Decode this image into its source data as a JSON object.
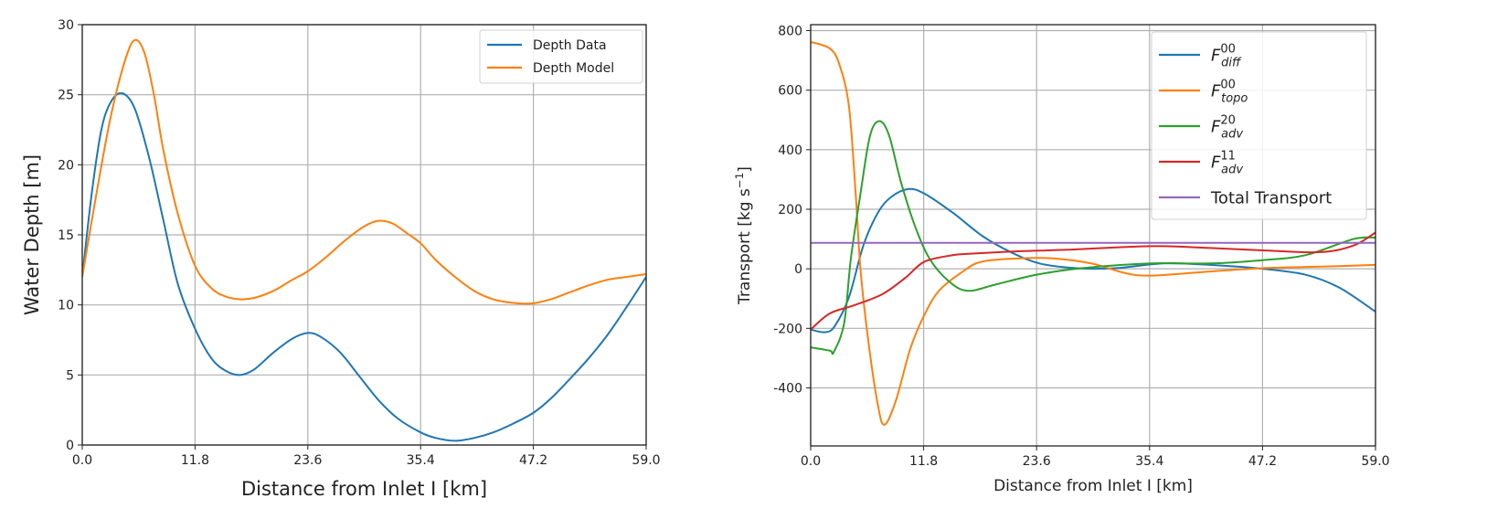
{
  "chart_data": [
    {
      "type": "line",
      "xlabel": "Distance from Inlet I [km]",
      "ylabel": "Water Depth [m]",
      "xlim": [
        0,
        59
      ],
      "ylim": [
        0,
        30
      ],
      "xticks": [
        "0.0",
        "11.8",
        "23.6",
        "35.4",
        "47.2",
        "59.0"
      ],
      "yticks": [
        "0",
        "5",
        "10",
        "15",
        "20",
        "25",
        "30"
      ],
      "grid": true,
      "legend_position": "top-right",
      "series": [
        {
          "name": "Depth Data",
          "color": "#1f77b4",
          "x": [
            0,
            1,
            2,
            3,
            4.2,
            5.5,
            7,
            8.5,
            10,
            11.8,
            13.5,
            15,
            16.5,
            18,
            20,
            22,
            23.6,
            25,
            27,
            29,
            31,
            33,
            35.4,
            37,
            39,
            41,
            43,
            45,
            47.2,
            49,
            51,
            53,
            55,
            57,
            59
          ],
          "y": [
            12,
            18,
            22.5,
            24.5,
            25.1,
            24,
            20.5,
            16,
            11.5,
            8.3,
            6.2,
            5.3,
            5.0,
            5.4,
            6.6,
            7.6,
            8.0,
            7.7,
            6.6,
            4.9,
            3.2,
            1.9,
            0.9,
            0.5,
            0.3,
            0.5,
            0.9,
            1.5,
            2.3,
            3.3,
            4.7,
            6.2,
            7.9,
            9.9,
            12
          ]
        },
        {
          "name": "Depth Model",
          "color": "#ff7f0e",
          "x": [
            0,
            1.5,
            3,
            4.5,
            5.5,
            6.5,
            7.5,
            8.5,
            10,
            11.8,
            13.5,
            15,
            16.5,
            18,
            20,
            22,
            23.6,
            25.5,
            27.5,
            29.5,
            31,
            32.5,
            34,
            35.4,
            37,
            39,
            41,
            43,
            45,
            47,
            49,
            51,
            53,
            55,
            57,
            59
          ],
          "y": [
            12,
            18,
            23.5,
            27.5,
            28.9,
            28,
            25,
            21,
            16.5,
            12.8,
            11.2,
            10.6,
            10.4,
            10.5,
            11,
            11.8,
            12.4,
            13.4,
            14.6,
            15.6,
            16.0,
            15.8,
            15.1,
            14.4,
            13.2,
            12,
            11,
            10.4,
            10.15,
            10.1,
            10.4,
            10.9,
            11.4,
            11.8,
            12,
            12.2
          ]
        }
      ]
    },
    {
      "type": "line",
      "xlabel": "Distance from Inlet I [km]",
      "ylabel": "Transport [kg s",
      "ylabel_sup": "−1",
      "ylabel_end": "]",
      "xlim": [
        0,
        59
      ],
      "ylim": [
        -595,
        820
      ],
      "xticks": [
        "0.0",
        "11.8",
        "23.6",
        "35.4",
        "47.2",
        "59.0"
      ],
      "yticks": [
        "-400",
        "-200",
        "0",
        "200",
        "400",
        "600",
        "800"
      ],
      "grid": true,
      "legend_position": "top-right",
      "series": [
        {
          "name": "F",
          "sup": "00",
          "sub": "diff",
          "color": "#1f77b4",
          "x": [
            0,
            1.5,
            2.5,
            4,
            5.5,
            7,
            8.4,
            10.2,
            11.9,
            14.9,
            17.9,
            20.9,
            23.9,
            27.8,
            31.8,
            36.8,
            41.7,
            47.2,
            51.7,
            55.2,
            59
          ],
          "y": [
            -204,
            -213,
            -193,
            -95,
            78,
            187,
            241,
            268,
            252,
            187,
            111,
            56,
            18,
            2,
            2,
            18,
            13,
            0,
            -20,
            -63,
            -144
          ]
        },
        {
          "name": "F",
          "sup": "00",
          "sub": "topo",
          "color": "#ff7f0e",
          "x": [
            0,
            2,
            3,
            4,
            4.7,
            5.2,
            6,
            7,
            7.7,
            8.9,
            10.4,
            11.8,
            13.4,
            15.9,
            17.9,
            21.9,
            25.3,
            29.3,
            32.8,
            35.5,
            41.7,
            47.2,
            54.2,
            59
          ],
          "y": [
            762,
            740,
            686,
            545,
            252,
            0,
            -237,
            -454,
            -524,
            -443,
            -269,
            -160,
            -74,
            -9,
            24,
            35,
            35,
            18,
            -14,
            -23,
            -9,
            2,
            8,
            13
          ]
        },
        {
          "name": "F",
          "sup": "20",
          "sub": "adv",
          "color": "#2ca02c",
          "x": [
            0,
            2,
            2.4,
            3.5,
            4.2,
            5.2,
            6.2,
            7.2,
            8.2,
            9.4,
            10.9,
            12.4,
            14.4,
            16.4,
            19.4,
            23.6,
            28.3,
            35.5,
            41.7,
            47.2,
            51.7,
            56.7,
            59
          ],
          "y": [
            -264,
            -275,
            -280,
            -182,
            35,
            252,
            447,
            496,
            447,
            295,
            143,
            35,
            -41,
            -74,
            -52,
            -20,
            2,
            18,
            18,
            29,
            46,
            100,
            105
          ]
        },
        {
          "name": "F",
          "sup": "11",
          "sub": "adv",
          "color": "#d62728",
          "x": [
            0,
            2,
            4.5,
            7.5,
            9.9,
            11.9,
            14.9,
            16.9,
            21.9,
            26.8,
            35.5,
            41.7,
            47.2,
            53.2,
            56.7,
            59
          ],
          "y": [
            -204,
            -150,
            -123,
            -85,
            -30,
            24,
            46,
            51,
            59,
            64,
            76,
            70,
            62,
            56,
            78,
            122
          ]
        },
        {
          "name": "Total Transport",
          "color": "#9467bd",
          "x": [
            0,
            59
          ],
          "y": [
            87,
            87
          ]
        }
      ]
    }
  ]
}
